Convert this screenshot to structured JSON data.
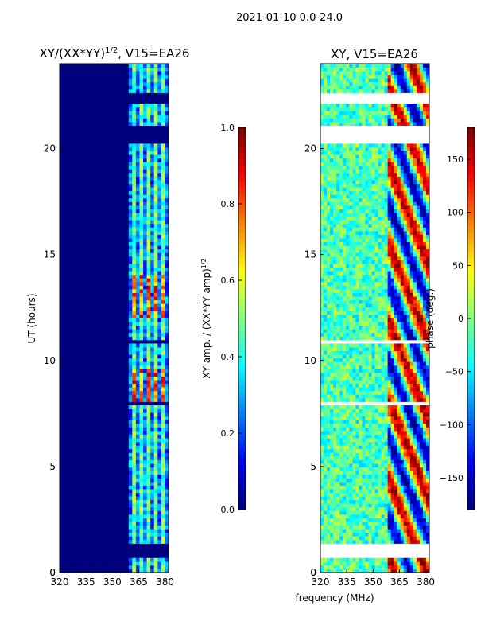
{
  "figure_title": "2021-01-10 0.0-24.0",
  "shared_xlabel": "frequency (MHz)",
  "colors": {
    "jet": [
      "#00007f",
      "#0000ff",
      "#007fff",
      "#00ffff",
      "#7fff7f",
      "#ffff00",
      "#ff7f00",
      "#ff0000",
      "#7f0000"
    ]
  },
  "chart_data": [
    {
      "type": "heatmap",
      "title_prefix": "XY/(XX*YY)",
      "title_exp": "1/2",
      "title_suffix": ", V15=EA26",
      "ylabel": "UT (hours)",
      "xlabel": "",
      "xlim": [
        320,
        382
      ],
      "ylim": [
        0,
        24
      ],
      "xticks": [
        320,
        335,
        350,
        365,
        380
      ],
      "yticks": [
        0,
        5,
        10,
        15,
        20
      ],
      "active_band": [
        360,
        382
      ],
      "band_channels": [
        363,
        367,
        371,
        375,
        379
      ],
      "gaps": [
        [
          0.7,
          1.4
        ],
        [
          7.85,
          8.05
        ],
        [
          10.75,
          11.0
        ],
        [
          20.25,
          21.1
        ],
        [
          22.2,
          22.55
        ]
      ],
      "hot_rows": [
        [
          8.1,
          9.6
        ],
        [
          12.0,
          14.0
        ]
      ],
      "colorbar": {
        "label_prefix": "XY amp. / (XX*YY amp)",
        "label_exp": "1/2",
        "range": [
          0.0,
          1.0
        ],
        "ticks": [
          "0.0",
          "0.2",
          "0.4",
          "0.6",
          "0.8",
          "1.0"
        ]
      }
    },
    {
      "type": "heatmap",
      "title": "XY, V15=EA26",
      "ylabel": "",
      "xlabel": "frequency (MHz)",
      "xlim": [
        320,
        382
      ],
      "ylim": [
        0,
        24
      ],
      "xticks": [
        320,
        335,
        350,
        365,
        380
      ],
      "yticks": [
        0,
        5,
        10,
        15,
        20
      ],
      "gaps": [
        [
          0.7,
          1.4
        ],
        [
          7.85,
          8.05
        ],
        [
          10.75,
          11.0
        ],
        [
          20.25,
          21.1
        ],
        [
          22.2,
          22.55
        ]
      ],
      "colorbar": {
        "label": "phase (deg.)",
        "range": [
          -180,
          180
        ],
        "ticks": [
          "−150",
          "−100",
          "−50",
          "0",
          "50",
          "100",
          "150"
        ],
        "tick_values": [
          -150,
          -100,
          -50,
          0,
          50,
          100,
          150
        ]
      }
    }
  ]
}
